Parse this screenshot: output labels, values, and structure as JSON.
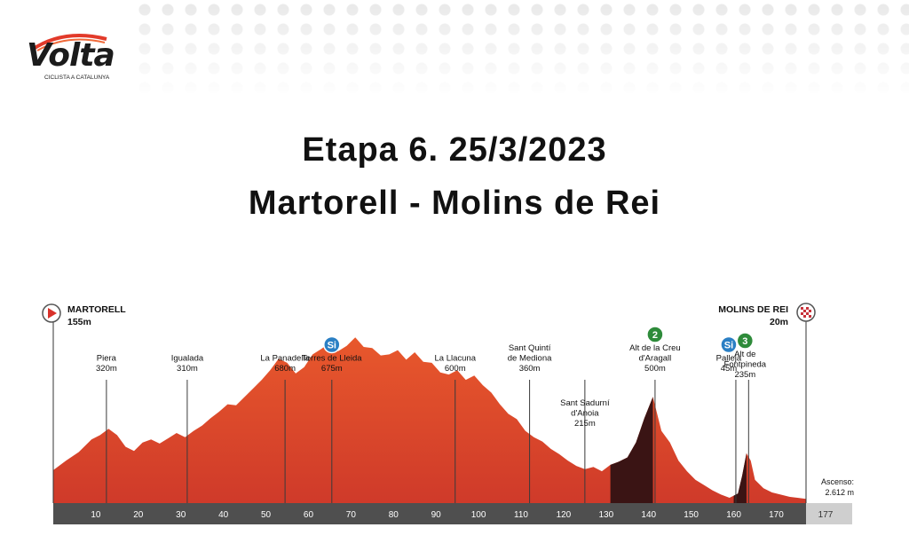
{
  "logo": {
    "word": "Volta",
    "subtitle": "CICLISTA A CATALUNYA"
  },
  "header": {
    "stage_title": "Etapa 6. 25/3/2023",
    "route_title": "Martorell - Molins de Rei"
  },
  "colors": {
    "profile_top": "#e8582c",
    "profile_bottom": "#cf3a2a",
    "climb_dark": "#3a1414",
    "axis_bar": "#4f4f4f",
    "axis_end": "#cfcfcf",
    "climb_badge_green": "#2e8b3a",
    "sprint_badge_blue": "#2a7fc4",
    "start_marker": "#d9322b"
  },
  "chart_data": {
    "type": "area",
    "title": "",
    "xlabel": "",
    "ylabel": "",
    "xlim": [
      0,
      177
    ],
    "ylim": [
      0,
      760
    ],
    "grid": false,
    "x_ticks": [
      10,
      20,
      30,
      40,
      50,
      60,
      70,
      80,
      90,
      100,
      110,
      120,
      130,
      140,
      150,
      160,
      170
    ],
    "end_label": "177",
    "profile": {
      "x": [
        0,
        3,
        6,
        9,
        11,
        13,
        15,
        17,
        19,
        21,
        23,
        25,
        27,
        29,
        31,
        33,
        35,
        37,
        39,
        41,
        43,
        45,
        47,
        49,
        51,
        53,
        55,
        57,
        59,
        61,
        63,
        65,
        67,
        69,
        71,
        73,
        75,
        77,
        79,
        81,
        83,
        85,
        87,
        89,
        91,
        93,
        95,
        97,
        99,
        101,
        103,
        105,
        107,
        109,
        111,
        113,
        115,
        117,
        119,
        121,
        123,
        125,
        127,
        129,
        131,
        133,
        135,
        137,
        139,
        141,
        143,
        145,
        147,
        149,
        151,
        153,
        155,
        157,
        159,
        161,
        162,
        163,
        164,
        165,
        167,
        169,
        171,
        173,
        175,
        177
      ],
      "y": [
        155,
        200,
        240,
        300,
        320,
        350,
        320,
        265,
        245,
        285,
        300,
        280,
        305,
        330,
        310,
        340,
        365,
        400,
        430,
        465,
        460,
        500,
        540,
        580,
        625,
        680,
        660,
        610,
        640,
        700,
        725,
        755,
        715,
        740,
        780,
        735,
        730,
        695,
        700,
        720,
        675,
        710,
        665,
        660,
        615,
        605,
        625,
        580,
        600,
        555,
        520,
        465,
        420,
        395,
        340,
        310,
        290,
        255,
        230,
        200,
        175,
        160,
        170,
        150,
        180,
        195,
        215,
        285,
        400,
        500,
        340,
        285,
        200,
        150,
        110,
        85,
        60,
        40,
        25,
        45,
        130,
        235,
        200,
        110,
        70,
        50,
        40,
        30,
        25,
        20
      ]
    },
    "climbs": [
      {
        "name": "Alt de la Creu d'Aragall",
        "category": "2",
        "start_km": 131,
        "top_km": 141
      },
      {
        "name": "Alt de Fontpineda",
        "category": "3",
        "start_km": 160,
        "top_km": 163
      }
    ],
    "annotations": [
      {
        "km": 0,
        "lines": [
          "MARTORELL",
          "155m"
        ],
        "style": "start"
      },
      {
        "km": 12.5,
        "lines": [
          "Piera",
          "320m"
        ],
        "style": "place"
      },
      {
        "km": 31.5,
        "lines": [
          "Igualada",
          "310m"
        ],
        "style": "place"
      },
      {
        "km": 54.5,
        "lines": [
          "La Panadella",
          "680m"
        ],
        "style": "place"
      },
      {
        "km": 65.5,
        "lines": [
          "Terres de Lleida",
          "675m"
        ],
        "style": "place",
        "badge": "sprint",
        "badge_text": "Si"
      },
      {
        "km": 94.5,
        "lines": [
          "La Llacuna",
          "600m"
        ],
        "style": "place"
      },
      {
        "km": 112,
        "lines": [
          "Sant Quintí",
          "de Mediona",
          "360m"
        ],
        "style": "place"
      },
      {
        "km": 125,
        "lines": [
          "Sant Sadurní",
          "d'Anoia",
          "215m"
        ],
        "style": "place"
      },
      {
        "km": 141.5,
        "lines": [
          "Alt de la Creu",
          "d'Aragall",
          "500m"
        ],
        "style": "place",
        "badge": "climb",
        "badge_text": "2"
      },
      {
        "km": 160.5,
        "lines": [
          "Pallejà",
          "45m"
        ],
        "style": "place",
        "badge": "sprint",
        "badge_text": "Si"
      },
      {
        "km": 163.5,
        "lines": [
          "Alt de",
          "Fontpineda",
          "235m"
        ],
        "style": "place",
        "badge": "climb",
        "badge_text": "3"
      },
      {
        "km": 177,
        "lines": [
          "MOLINS DE REI",
          "20m"
        ],
        "style": "finish"
      }
    ],
    "summary": {
      "label": "Ascenso:",
      "value": "2.612 m"
    }
  }
}
